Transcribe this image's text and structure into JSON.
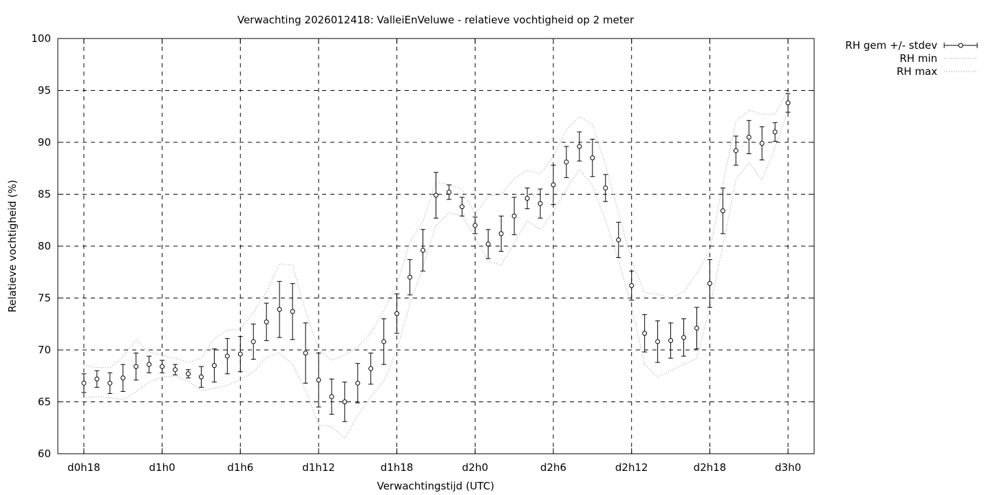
{
  "chart_data": {
    "type": "line",
    "title": "Verwachting 2026012418: ValleiEnVeluwe - relatieve vochtigheid op 2 meter",
    "xlabel": "Verwachtingstijd (UTC)",
    "ylabel": "Relatieve vochtigheid (%)",
    "xlim": [
      -2,
      56
    ],
    "ylim": [
      60,
      100
    ],
    "y_ticks": [
      60,
      65,
      70,
      75,
      80,
      85,
      90,
      95,
      100
    ],
    "x_ticks": [
      {
        "label": "d0h18",
        "value": 0
      },
      {
        "label": "d1h0",
        "value": 6
      },
      {
        "label": "d1h6",
        "value": 12
      },
      {
        "label": "d1h12",
        "value": 18
      },
      {
        "label": "d1h18",
        "value": 24
      },
      {
        "label": "d2h0",
        "value": 30
      },
      {
        "label": "d2h6",
        "value": 36
      },
      {
        "label": "d2h12",
        "value": 42
      },
      {
        "label": "d2h18",
        "value": 48
      },
      {
        "label": "d3h0",
        "value": 54
      }
    ],
    "grid": true,
    "legend_position": "outside-top-right",
    "x": [
      0,
      1,
      2,
      3,
      4,
      5,
      6,
      7,
      8,
      9,
      10,
      11,
      12,
      13,
      14,
      15,
      16,
      17,
      18,
      19,
      20,
      21,
      22,
      23,
      24,
      25,
      26,
      27,
      28,
      29,
      30,
      31,
      32,
      33,
      34,
      35,
      36,
      37,
      38,
      39,
      40,
      41,
      42,
      43,
      44,
      45,
      46,
      47,
      48,
      49,
      50,
      51,
      52,
      53,
      54
    ],
    "series": [
      {
        "name": "RH gem +/- stdev",
        "style": "errorbars",
        "mean": [
          66.8,
          67.2,
          66.8,
          67.3,
          68.4,
          68.6,
          68.4,
          68.1,
          67.7,
          67.4,
          68.5,
          69.4,
          69.6,
          70.8,
          72.7,
          73.9,
          73.7,
          69.7,
          67.1,
          65.5,
          65.0,
          66.8,
          68.2,
          70.8,
          73.5,
          77.0,
          79.6,
          84.9,
          85.2,
          83.8,
          82.0,
          80.2,
          81.2,
          82.9,
          84.6,
          84.1,
          85.9,
          88.1,
          89.6,
          88.5,
          85.6,
          80.6,
          76.2,
          71.6,
          70.8,
          70.9,
          71.2,
          72.1,
          76.4,
          83.4,
          89.2,
          90.5,
          89.9,
          91.0,
          93.8
        ],
        "stdev": [
          0.9,
          0.8,
          1.0,
          1.3,
          1.3,
          0.8,
          0.6,
          0.5,
          0.4,
          1.0,
          1.6,
          1.7,
          1.7,
          1.7,
          1.8,
          2.7,
          2.7,
          2.9,
          2.6,
          1.7,
          1.9,
          1.9,
          1.5,
          2.2,
          1.9,
          1.7,
          2.0,
          2.2,
          0.7,
          0.9,
          0.8,
          1.4,
          1.7,
          1.8,
          1.0,
          1.4,
          1.9,
          1.5,
          1.4,
          1.8,
          1.3,
          1.7,
          1.4,
          1.8,
          2.0,
          1.7,
          1.8,
          2.0,
          2.3,
          2.2,
          1.4,
          1.6,
          1.6,
          0.9,
          0.9
        ]
      },
      {
        "name": "RH min",
        "style": "dotted",
        "values": [
          65.4,
          65.5,
          65.4,
          65.2,
          66.0,
          66.9,
          67.4,
          67.5,
          67.0,
          66.1,
          66.3,
          66.6,
          67.1,
          67.9,
          69.3,
          69.7,
          68.6,
          66.1,
          62.8,
          62.6,
          61.5,
          63.7,
          65.5,
          67.0,
          70.0,
          74.4,
          78.0,
          82.0,
          83.2,
          82.9,
          80.9,
          78.5,
          78.2,
          80.3,
          82.4,
          81.6,
          83.3,
          85.5,
          87.4,
          85.8,
          82.5,
          78.6,
          74.2,
          68.6,
          67.4,
          68.0,
          68.6,
          69.2,
          74.1,
          80.0,
          86.4,
          88.0,
          86.4,
          89.5,
          93.1
        ]
      },
      {
        "name": "RH max",
        "style": "dotted",
        "values": [
          68.5,
          68.3,
          68.3,
          69.3,
          71.0,
          69.8,
          69.5,
          69.2,
          68.8,
          69.2,
          71.1,
          71.9,
          72.0,
          73.6,
          75.6,
          78.3,
          78.2,
          73.7,
          70.1,
          69.0,
          69.5,
          70.3,
          71.6,
          73.8,
          76.3,
          80.4,
          82.4,
          86.2,
          85.9,
          85.5,
          83.1,
          84.8,
          85.0,
          86.5,
          87.3,
          87.0,
          88.6,
          91.2,
          92.5,
          91.7,
          87.8,
          83.2,
          78.6,
          75.5,
          75.4,
          75.0,
          75.6,
          77.4,
          79.6,
          86.0,
          92.0,
          93.1,
          92.7,
          92.7,
          95.0
        ]
      }
    ]
  }
}
